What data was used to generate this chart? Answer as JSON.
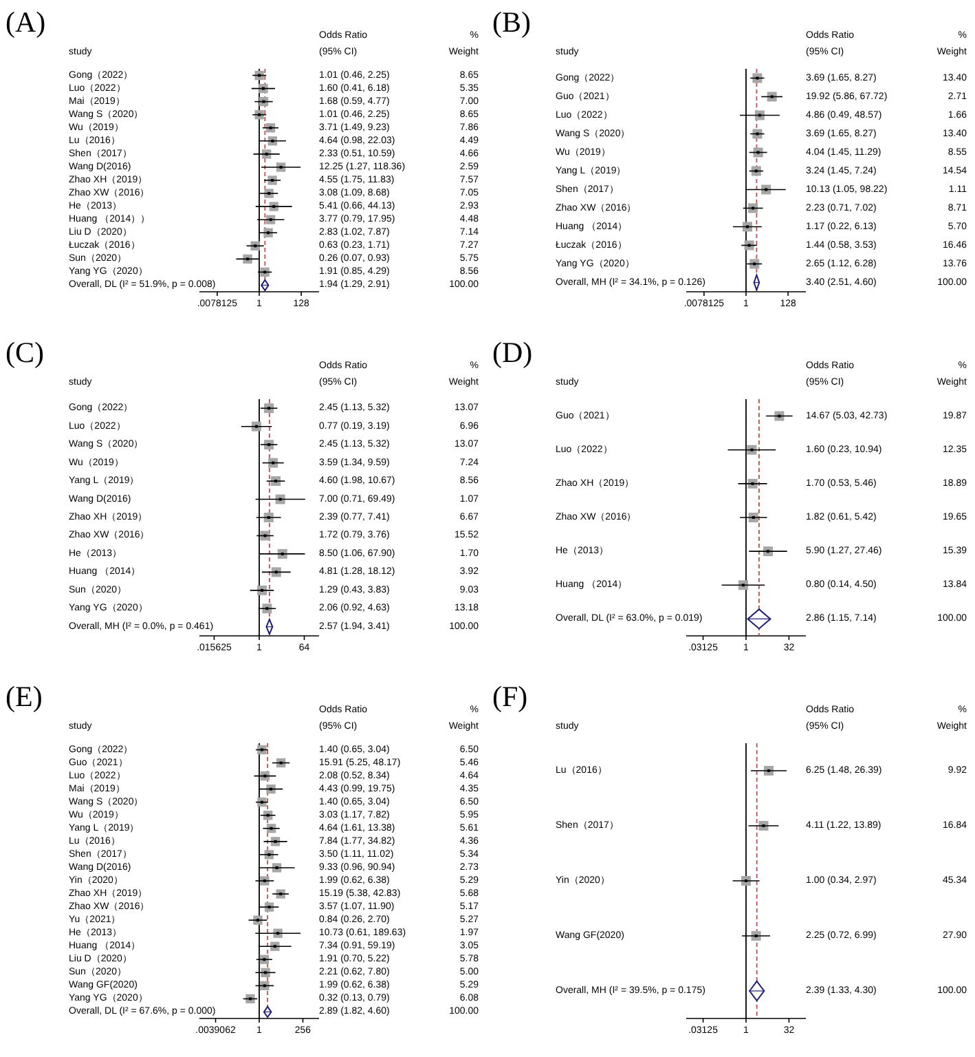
{
  "chart_data": [
    {
      "type": "scatter",
      "title": "(A)",
      "orientation": "horizontal",
      "log": "x",
      "xlim": [
        0.001,
        1000
      ],
      "xticks": [
        {
          "value": 0.0078125,
          "label": ".0078125"
        },
        1,
        128
      ],
      "categories": [
        "Gong（2022）",
        "Luo（2022）",
        "Mai（2019）",
        "Wang S（2020）",
        "Wu（2019）",
        "Lu（2016）",
        "Shen（2017）",
        "Wang D(2016)",
        "Zhao XH（2019）",
        "Zhao XW（2016）",
        "He（2013）",
        "Huang （2014））",
        "Liu D（2020）",
        "Łuczak（2016）",
        "Sun（2020）",
        "Yang YG（2020）",
        "Overall, DL (I² = 51.9%, p = 0.008)"
      ],
      "series": [
        {
          "marker": "square",
          "color": "#000000",
          "values": [
            1.01,
            1.6,
            1.68,
            1.01,
            3.71,
            4.64,
            2.33,
            12.25,
            4.55,
            3.08,
            5.41,
            3.77,
            2.83,
            0.63,
            0.26,
            1.91,
            null
          ],
          "errors": [
            [
              0.46,
              2.25
            ],
            [
              0.41,
              6.18
            ],
            [
              0.59,
              4.77
            ],
            [
              0.46,
              2.25
            ],
            [
              1.49,
              9.23
            ],
            [
              0.98,
              22.03
            ],
            [
              0.51,
              10.59
            ],
            [
              1.27,
              118.36
            ],
            [
              1.75,
              11.83
            ],
            [
              1.09,
              8.68
            ],
            [
              0.66,
              44.13
            ],
            [
              0.79,
              17.95
            ],
            [
              1.02,
              7.87
            ],
            [
              0.23,
              1.71
            ],
            [
              0.07,
              0.93
            ],
            [
              0.85,
              4.29
            ],
            null
          ]
        },
        {
          "marker": "diamond",
          "color": "#1f1f7a",
          "values": [
            null,
            null,
            null,
            null,
            null,
            null,
            null,
            null,
            null,
            null,
            null,
            null,
            null,
            null,
            null,
            null,
            1.94
          ],
          "errors": [
            null,
            null,
            null,
            null,
            null,
            null,
            null,
            null,
            null,
            null,
            null,
            null,
            null,
            null,
            null,
            null,
            [
              1.29,
              2.91
            ]
          ]
        }
      ],
      "ref_lines": [
        {
          "axis": "x",
          "value": 1,
          "color": "#000000",
          "line_style": "solid"
        },
        {
          "axis": "x",
          "value": 1.94,
          "color": "#c0504d",
          "line_style": "dashed"
        }
      ],
      "annotations": [
        "study",
        "Odds Ratio",
        "(95% CI)",
        "%",
        "Weight",
        "1.01 (0.46, 2.25)",
        "8.65",
        "1.60 (0.41, 6.18)",
        "5.35",
        "1.68 (0.59, 4.77)",
        "7.00",
        "1.01 (0.46, 2.25)",
        "8.65",
        "3.71 (1.49, 9.23)",
        "7.86",
        "4.64 (0.98, 22.03)",
        "4.49",
        "2.33 (0.51, 10.59)",
        "4.66",
        "12.25 (1.27, 118.36)",
        "2.59",
        "4.55 (1.75, 11.83)",
        "7.57",
        "3.08 (1.09, 8.68)",
        "7.05",
        "5.41 (0.66, 44.13)",
        "2.93",
        "3.77 (0.79, 17.95)",
        "4.48",
        "2.83 (1.02, 7.87)",
        "7.14",
        "0.63 (0.23, 1.71)",
        "7.27",
        "0.26 (0.07, 0.93)",
        "5.75",
        "1.91 (0.85, 4.29)",
        "8.56",
        "1.94 (1.29, 2.91)",
        "100.00"
      ]
    },
    {
      "type": "scatter",
      "title": "(B)",
      "orientation": "horizontal",
      "log": "x",
      "xlim": [
        0.001,
        1000
      ],
      "xticks": [
        {
          "value": 0.0078125,
          "label": ".0078125"
        },
        1,
        128
      ],
      "categories": [
        "Gong（2022）",
        "Guo（2021）",
        "Luo（2022）",
        "Wang S（2020）",
        "Wu（2019）",
        "Yang L（2019）",
        "Shen（2017）",
        "Zhao XW（2016）",
        "Huang （2014）",
        "Łuczak（2016）",
        "Yang YG（2020）",
        "Overall, MH (I² = 34.1%, p = 0.126)"
      ],
      "series": [
        {
          "marker": "square",
          "color": "#000000",
          "values": [
            3.69,
            19.92,
            4.86,
            3.69,
            4.04,
            3.24,
            10.13,
            2.23,
            1.17,
            1.44,
            2.65,
            null
          ],
          "errors": [
            [
              1.65,
              8.27
            ],
            [
              5.86,
              67.72
            ],
            [
              0.49,
              48.57
            ],
            [
              1.65,
              8.27
            ],
            [
              1.45,
              11.29
            ],
            [
              1.45,
              7.24
            ],
            [
              1.05,
              98.22
            ],
            [
              0.71,
              7.02
            ],
            [
              0.22,
              6.13
            ],
            [
              0.58,
              3.53
            ],
            [
              1.12,
              6.28
            ],
            null
          ]
        },
        {
          "marker": "diamond",
          "color": "#1f1f7a",
          "values": [
            null,
            null,
            null,
            null,
            null,
            null,
            null,
            null,
            null,
            null,
            null,
            3.4
          ],
          "errors": [
            null,
            null,
            null,
            null,
            null,
            null,
            null,
            null,
            null,
            null,
            null,
            [
              2.51,
              4.6
            ]
          ]
        }
      ],
      "ref_lines": [
        {
          "axis": "x",
          "value": 1,
          "color": "#000000",
          "line_style": "solid"
        },
        {
          "axis": "x",
          "value": 3.4,
          "color": "#c0504d",
          "line_style": "dashed"
        }
      ],
      "annotations": [
        "study",
        "Odds Ratio",
        "(95% CI)",
        "%",
        "Weight",
        "3.69 (1.65, 8.27)",
        "13.40",
        "19.92 (5.86, 67.72)",
        "2.71",
        "4.86 (0.49, 48.57)",
        "1.66",
        "3.69 (1.65, 8.27)",
        "13.40",
        "4.04 (1.45, 11.29)",
        "8.55",
        "3.24 (1.45, 7.24)",
        "14.54",
        "10.13 (1.05, 98.22)",
        "1.11",
        "2.23 (0.71, 7.02)",
        "8.71",
        "1.17 (0.22, 6.13)",
        "5.70",
        "1.44 (0.58, 3.53)",
        "16.46",
        "2.65 (1.12, 6.28)",
        "13.76",
        "3.40 (2.51, 4.60)",
        "100.00"
      ]
    },
    {
      "type": "scatter",
      "title": "(C)",
      "orientation": "horizontal",
      "log": "x",
      "xlim": [
        0.004,
        250
      ],
      "xticks": [
        {
          "value": 0.015625,
          "label": ".015625"
        },
        1,
        64
      ],
      "categories": [
        "Gong（2022）",
        "Luo（2022）",
        "Wang S（2020）",
        "Wu（2019）",
        "Yang L（2019）",
        "Wang D(2016)",
        "Zhao XH（2019）",
        "Zhao XW（2016）",
        "He（2013）",
        "Huang （2014）",
        "Sun（2020）",
        "Yang YG（2020）",
        "Overall, MH (I² = 0.0%, p = 0.461)"
      ],
      "series": [
        {
          "marker": "square",
          "color": "#000000",
          "values": [
            2.45,
            0.77,
            2.45,
            3.59,
            4.6,
            7.0,
            2.39,
            1.72,
            8.5,
            4.81,
            1.29,
            2.06,
            null
          ],
          "errors": [
            [
              1.13,
              5.32
            ],
            [
              0.19,
              3.19
            ],
            [
              1.13,
              5.32
            ],
            [
              1.34,
              9.59
            ],
            [
              1.98,
              10.67
            ],
            [
              0.71,
              69.49
            ],
            [
              0.77,
              7.41
            ],
            [
              0.79,
              3.76
            ],
            [
              1.06,
              67.9
            ],
            [
              1.28,
              18.12
            ],
            [
              0.43,
              3.83
            ],
            [
              0.92,
              4.63
            ],
            null
          ]
        },
        {
          "marker": "diamond",
          "color": "#1f1f7a",
          "values": [
            null,
            null,
            null,
            null,
            null,
            null,
            null,
            null,
            null,
            null,
            null,
            null,
            2.57
          ],
          "errors": [
            null,
            null,
            null,
            null,
            null,
            null,
            null,
            null,
            null,
            null,
            null,
            null,
            [
              1.94,
              3.41
            ]
          ]
        }
      ],
      "ref_lines": [
        {
          "axis": "x",
          "value": 1,
          "color": "#000000",
          "line_style": "solid"
        },
        {
          "axis": "x",
          "value": 2.57,
          "color": "#c0504d",
          "line_style": "dashed"
        }
      ],
      "annotations": [
        "study",
        "Odds Ratio",
        "(95% CI)",
        "%",
        "Weight",
        "2.45 (1.13, 5.32)",
        "13.07",
        "0.77 (0.19, 3.19)",
        "6.96",
        "2.45 (1.13, 5.32)",
        "13.07",
        "3.59 (1.34, 9.59)",
        "7.24",
        "4.60 (1.98, 10.67)",
        "8.56",
        "7.00 (0.71, 69.49)",
        "1.07",
        "2.39 (0.77, 7.41)",
        "6.67",
        "1.72 (0.79, 3.76)",
        "15.52",
        "8.50 (1.06, 67.90)",
        "1.70",
        "4.81 (1.28, 18.12)",
        "3.92",
        "1.29 (0.43, 3.83)",
        "9.03",
        "2.06 (0.92, 4.63)",
        "13.18",
        "2.57 (1.94, 3.41)",
        "100.00"
      ]
    },
    {
      "type": "scatter",
      "title": "(D)",
      "orientation": "horizontal",
      "log": "x",
      "xlim": [
        0.008,
        125
      ],
      "xticks": [
        {
          "value": 0.03125,
          "label": ".03125"
        },
        1,
        32
      ],
      "categories": [
        "Guo（2021）",
        "Luo（2022）",
        "Zhao XH（2019）",
        "Zhao XW（2016）",
        "He（2013）",
        "Huang （2014）",
        "Overall, DL (I² = 63.0%, p = 0.019)"
      ],
      "series": [
        {
          "marker": "square",
          "color": "#000000",
          "values": [
            14.67,
            1.6,
            1.7,
            1.82,
            5.9,
            0.8,
            null
          ],
          "errors": [
            [
              5.03,
              42.73
            ],
            [
              0.23,
              10.94
            ],
            [
              0.53,
              5.46
            ],
            [
              0.61,
              5.42
            ],
            [
              1.27,
              27.46
            ],
            [
              0.14,
              4.5
            ],
            null
          ]
        },
        {
          "marker": "diamond",
          "color": "#1f1f7a",
          "values": [
            null,
            null,
            null,
            null,
            null,
            null,
            2.86
          ],
          "errors": [
            null,
            null,
            null,
            null,
            null,
            null,
            [
              1.15,
              7.14
            ]
          ]
        }
      ],
      "ref_lines": [
        {
          "axis": "x",
          "value": 1,
          "color": "#000000",
          "line_style": "solid"
        },
        {
          "axis": "x",
          "value": 2.86,
          "color": "#c0504d",
          "line_style": "dashed"
        }
      ],
      "annotations": [
        "study",
        "Odds Ratio",
        "(95% CI)",
        "%",
        "Weight",
        "14.67 (5.03, 42.73)",
        "19.87",
        "1.60 (0.23, 10.94)",
        "12.35",
        "1.70 (0.53, 5.46)",
        "18.89",
        "1.82 (0.61, 5.42)",
        "19.65",
        "5.90 (1.27, 27.46)",
        "15.39",
        "0.80 (0.14, 4.50)",
        "13.84",
        "2.86 (1.15, 7.14)",
        "100.00"
      ]
    },
    {
      "type": "scatter",
      "title": "(E)",
      "orientation": "horizontal",
      "log": "x",
      "xlim": [
        0.0005,
        2000
      ],
      "xticks": [
        {
          "value": 0.00390625,
          "label": ".0039062"
        },
        1,
        256
      ],
      "categories": [
        "Gong（2022）",
        "Guo（2021）",
        "Luo（2022）",
        "Mai（2019）",
        "Wang S（2020）",
        "Wu（2019）",
        "Yang L（2019）",
        "Lu（2016）",
        "Shen（2017）",
        "Wang D(2016)",
        "Yin（2020）",
        "Zhao XH（2019）",
        "Zhao XW（2016）",
        "Yu（2021）",
        "He（2013）",
        "Huang （2014）",
        "Liu D（2020）",
        "Sun（2020）",
        "Wang GF(2020)",
        "Yang YG（2020）",
        "Overall, DL (I² = 67.6%, p = 0.000)"
      ],
      "series": [
        {
          "marker": "square",
          "color": "#000000",
          "values": [
            1.4,
            15.91,
            2.08,
            4.43,
            1.4,
            3.03,
            4.64,
            7.84,
            3.5,
            9.33,
            1.99,
            15.19,
            3.57,
            0.84,
            10.73,
            7.34,
            1.91,
            2.21,
            1.99,
            0.32,
            null
          ],
          "errors": [
            [
              0.65,
              3.04
            ],
            [
              5.25,
              48.17
            ],
            [
              0.52,
              8.34
            ],
            [
              0.99,
              19.75
            ],
            [
              0.65,
              3.04
            ],
            [
              1.17,
              7.82
            ],
            [
              1.61,
              13.38
            ],
            [
              1.77,
              34.82
            ],
            [
              1.11,
              11.02
            ],
            [
              0.96,
              90.94
            ],
            [
              0.62,
              6.38
            ],
            [
              5.38,
              42.83
            ],
            [
              1.07,
              11.9
            ],
            [
              0.26,
              2.7
            ],
            [
              0.61,
              189.63
            ],
            [
              0.91,
              59.19
            ],
            [
              0.7,
              5.22
            ],
            [
              0.62,
              7.8
            ],
            [
              0.62,
              6.38
            ],
            [
              0.13,
              0.79
            ],
            null
          ]
        },
        {
          "marker": "diamond",
          "color": "#1f1f7a",
          "values": [
            null,
            null,
            null,
            null,
            null,
            null,
            null,
            null,
            null,
            null,
            null,
            null,
            null,
            null,
            null,
            null,
            null,
            null,
            null,
            null,
            2.89
          ],
          "errors": [
            null,
            null,
            null,
            null,
            null,
            null,
            null,
            null,
            null,
            null,
            null,
            null,
            null,
            null,
            null,
            null,
            null,
            null,
            null,
            null,
            [
              1.82,
              4.6
            ]
          ]
        }
      ],
      "ref_lines": [
        {
          "axis": "x",
          "value": 1,
          "color": "#000000",
          "line_style": "solid"
        },
        {
          "axis": "x",
          "value": 2.89,
          "color": "#c0504d",
          "line_style": "dashed"
        }
      ],
      "annotations": [
        "study",
        "Odds Ratio",
        "(95% CI)",
        "%",
        "Weight",
        "1.40 (0.65, 3.04)",
        "6.50",
        "15.91 (5.25, 48.17)",
        "5.46",
        "2.08 (0.52, 8.34)",
        "4.64",
        "4.43 (0.99, 19.75)",
        "4.35",
        "1.40 (0.65, 3.04)",
        "6.50",
        "3.03 (1.17, 7.82)",
        "5.95",
        "4.64 (1.61, 13.38)",
        "5.61",
        "7.84 (1.77, 34.82)",
        "4.36",
        "3.50 (1.11, 11.02)",
        "5.34",
        "9.33 (0.96, 90.94)",
        "2.73",
        "1.99 (0.62, 6.38)",
        "5.29",
        "15.19 (5.38, 42.83)",
        "5.68",
        "3.57 (1.07, 11.90)",
        "5.17",
        "0.84 (0.26, 2.70)",
        "5.27",
        "10.73 (0.61, 189.63)",
        "1.97",
        "7.34 (0.91, 59.19)",
        "3.05",
        "1.91 (0.70, 5.22)",
        "5.78",
        "2.21 (0.62, 7.80)",
        "5.00",
        "1.99 (0.62, 6.38)",
        "5.29",
        "0.32 (0.13, 0.79)",
        "6.08",
        "2.89 (1.82, 4.60)",
        "100.00"
      ]
    },
    {
      "type": "scatter",
      "title": "(F)",
      "orientation": "horizontal",
      "log": "x",
      "xlim": [
        0.008,
        125
      ],
      "xticks": [
        {
          "value": 0.03125,
          "label": ".03125"
        },
        1,
        32
      ],
      "categories": [
        "Lu（2016）",
        "Shen（2017）",
        "Yin（2020）",
        "Wang GF(2020)",
        "Overall, MH (I² = 39.5%, p = 0.175)"
      ],
      "series": [
        {
          "marker": "square",
          "color": "#000000",
          "values": [
            6.25,
            4.11,
            1.0,
            2.25,
            null
          ],
          "errors": [
            [
              1.48,
              26.39
            ],
            [
              1.22,
              13.89
            ],
            [
              0.34,
              2.97
            ],
            [
              0.72,
              6.99
            ],
            null
          ]
        },
        {
          "marker": "diamond",
          "color": "#1f1f7a",
          "values": [
            null,
            null,
            null,
            null,
            2.39
          ],
          "errors": [
            null,
            null,
            null,
            null,
            [
              1.33,
              4.3
            ]
          ]
        }
      ],
      "ref_lines": [
        {
          "axis": "x",
          "value": 1,
          "color": "#000000",
          "line_style": "solid"
        },
        {
          "axis": "x",
          "value": 2.39,
          "color": "#c0504d",
          "line_style": "dashed"
        }
      ],
      "annotations": [
        "study",
        "Odds Ratio",
        "(95% CI)",
        "%",
        "Weight",
        "6.25 (1.48, 26.39)",
        "9.92",
        "4.11 (1.22, 13.89)",
        "16.84",
        "1.00 (0.34, 2.97)",
        "45.34",
        "2.25 (0.72, 6.99)",
        "27.90",
        "2.39 (1.33, 4.30)",
        "100.00"
      ]
    }
  ]
}
